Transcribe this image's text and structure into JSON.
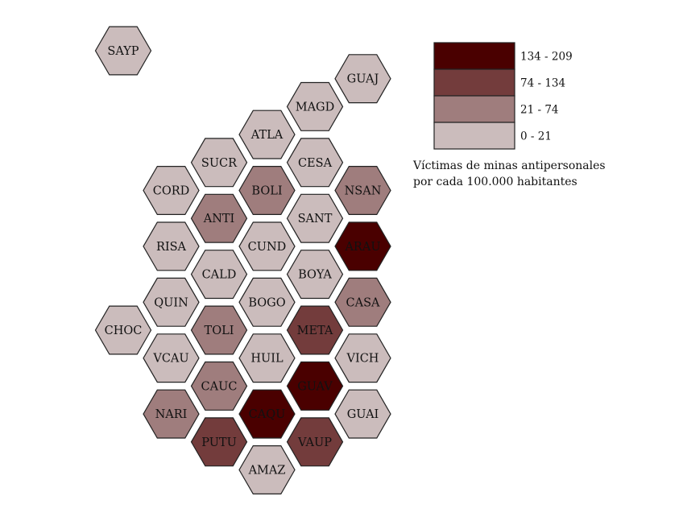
{
  "map": {
    "unit": "Víctimas de minas antipersonales por cada 100.000 habitantes",
    "cells": [
      {
        "code": "SAYP",
        "col": 0,
        "row": 0,
        "class": 0
      },
      {
        "code": "GUAJ",
        "col": 5,
        "row": 1,
        "class": 0
      },
      {
        "code": "MAGD",
        "col": 4,
        "row": 2,
        "class": 0
      },
      {
        "code": "ATLA",
        "col": 3,
        "row": 3,
        "class": 0
      },
      {
        "code": "SUCR",
        "col": 2,
        "row": 4,
        "class": 0
      },
      {
        "code": "CESA",
        "col": 4,
        "row": 4,
        "class": 0
      },
      {
        "code": "CORD",
        "col": 1,
        "row": 5,
        "class": 0
      },
      {
        "code": "BOLI",
        "col": 3,
        "row": 5,
        "class": 1
      },
      {
        "code": "NSAN",
        "col": 5,
        "row": 5,
        "class": 1
      },
      {
        "code": "ANTI",
        "col": 2,
        "row": 6,
        "class": 1
      },
      {
        "code": "SANT",
        "col": 4,
        "row": 6,
        "class": 0
      },
      {
        "code": "RISA",
        "col": 1,
        "row": 7,
        "class": 0
      },
      {
        "code": "CUND",
        "col": 3,
        "row": 7,
        "class": 0
      },
      {
        "code": "ARAU",
        "col": 5,
        "row": 7,
        "class": 3
      },
      {
        "code": "CALD",
        "col": 2,
        "row": 8,
        "class": 0
      },
      {
        "code": "BOYA",
        "col": 4,
        "row": 8,
        "class": 0
      },
      {
        "code": "QUIN",
        "col": 1,
        "row": 9,
        "class": 0
      },
      {
        "code": "BOGO",
        "col": 3,
        "row": 9,
        "class": 0
      },
      {
        "code": "CASA",
        "col": 5,
        "row": 9,
        "class": 1
      },
      {
        "code": "CHOC",
        "col": 0,
        "row": 10,
        "class": 0
      },
      {
        "code": "TOLI",
        "col": 2,
        "row": 10,
        "class": 1
      },
      {
        "code": "META",
        "col": 4,
        "row": 10,
        "class": 2
      },
      {
        "code": "VCAU",
        "col": 1,
        "row": 11,
        "class": 0
      },
      {
        "code": "HUIL",
        "col": 3,
        "row": 11,
        "class": 0
      },
      {
        "code": "VICH",
        "col": 5,
        "row": 11,
        "class": 0
      },
      {
        "code": "CAUC",
        "col": 2,
        "row": 12,
        "class": 1
      },
      {
        "code": "GUAV",
        "col": 4,
        "row": 12,
        "class": 3
      },
      {
        "code": "NARI",
        "col": 1,
        "row": 13,
        "class": 1
      },
      {
        "code": "CAQU",
        "col": 3,
        "row": 13,
        "class": 3
      },
      {
        "code": "GUAI",
        "col": 5,
        "row": 13,
        "class": 0
      },
      {
        "code": "PUTU",
        "col": 2,
        "row": 14,
        "class": 2
      },
      {
        "code": "VAUP",
        "col": 4,
        "row": 14,
        "class": 2
      },
      {
        "code": "AMAZ",
        "col": 3,
        "row": 15,
        "class": 0
      }
    ]
  },
  "legend": {
    "items": [
      {
        "label": "134 - 209",
        "color": "#4a0000"
      },
      {
        "label": "74 - 134",
        "color": "#733c3c"
      },
      {
        "label": "21 - 74",
        "color": "#9f7d7d"
      },
      {
        "label": "0 - 21",
        "color": "#cbbcbc"
      }
    ],
    "caption_line1": "Víctimas de minas antipersonales",
    "caption_line2": "por cada 100.000 habitantes"
  }
}
